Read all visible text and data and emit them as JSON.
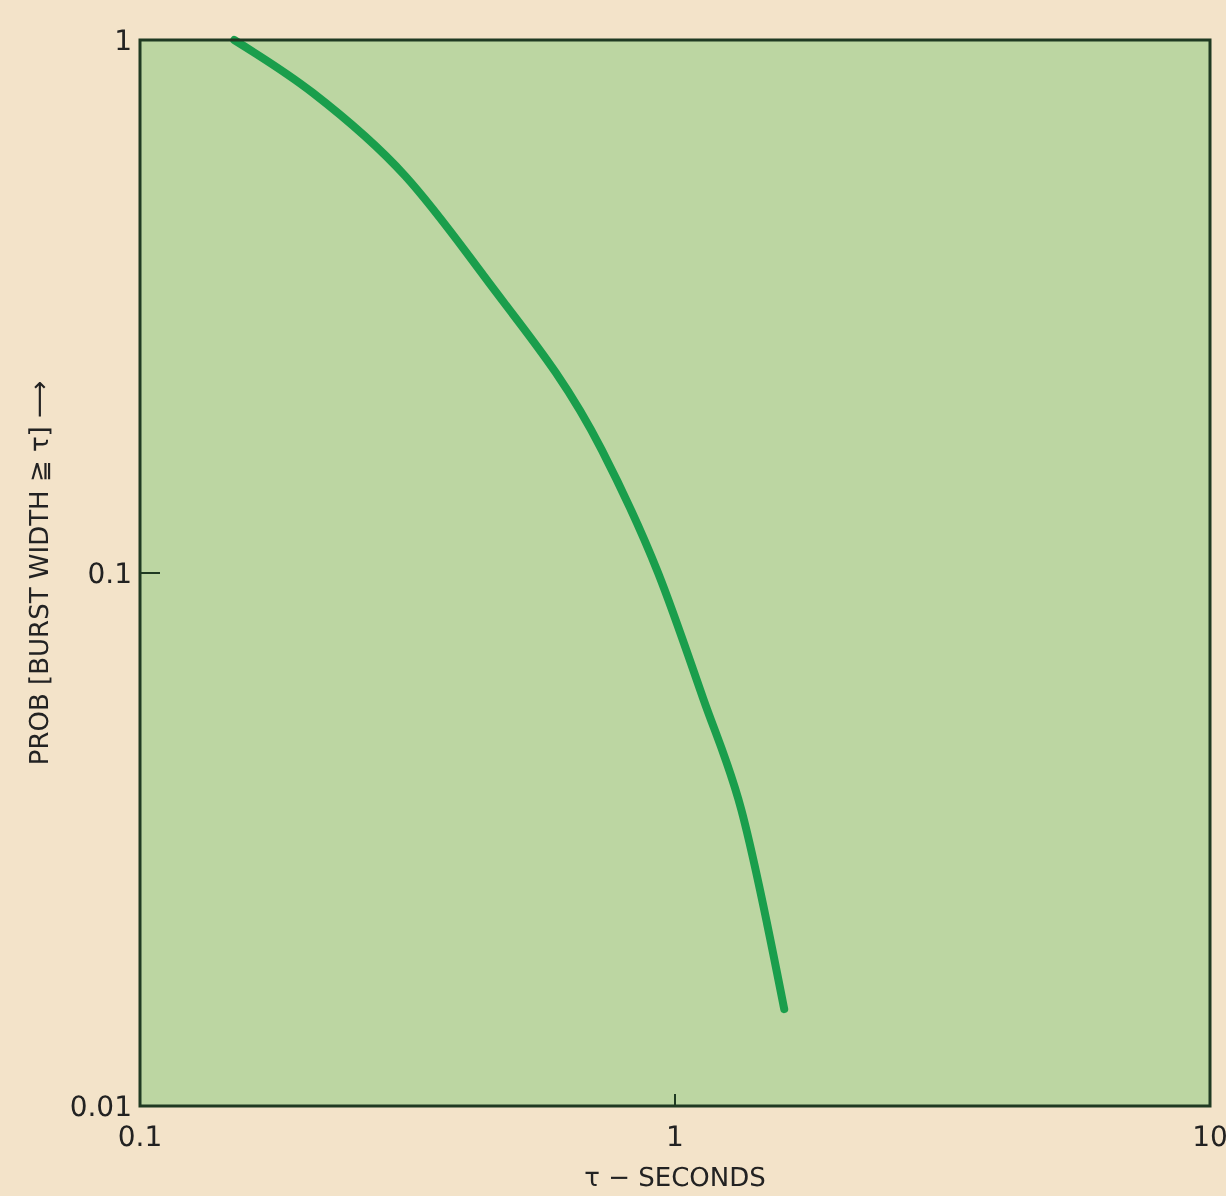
{
  "chart_data": {
    "type": "line",
    "xlabel": "τ − SECONDS",
    "ylabel": "PROB [BURST WIDTH ≧ τ] ⟶",
    "log": "xy",
    "grid": false,
    "marker": "none",
    "line_style": "solid",
    "xlim": [
      0.1,
      10
    ],
    "xticks": [
      0.1,
      1,
      10
    ],
    "ylim": [
      0.01,
      1
    ],
    "yticks": [
      0.01,
      0.1,
      1
    ],
    "x": [
      0.15,
      0.21,
      0.313,
      0.44,
      0.73,
      0.93,
      1.13,
      1.33,
      1.6
    ],
    "series": [
      {
        "color": "#1a9e4c",
        "values": [
          1,
          0.797,
          0.556,
          0.36,
          0.17,
          0.1,
          0.058,
          0.036,
          0.0152
        ]
      }
    ]
  }
}
